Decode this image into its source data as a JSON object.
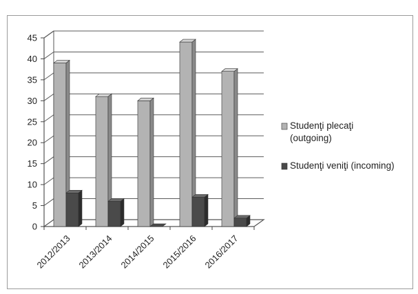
{
  "chart_data": {
    "type": "bar",
    "style": "3d-clustered-column",
    "title": "",
    "xlabel": "",
    "ylabel": "",
    "categories": [
      "2012/2013",
      "2013/2014",
      "2014/2015",
      "2015/2016",
      "2016/2017"
    ],
    "ylim": [
      0,
      45
    ],
    "yticks": [
      0,
      5,
      10,
      15,
      20,
      25,
      30,
      35,
      40,
      45
    ],
    "grid": true,
    "legend_position": "right",
    "series": [
      {
        "name": "Studenţi plecaţi (outgoing)",
        "legend_lines": [
          "Studenţi plecaţi",
          "(outgoing)"
        ],
        "values": [
          39,
          31,
          30,
          44,
          37
        ],
        "color": "#b3b3b3",
        "color_dark": "#8a8a8a",
        "color_light": "#d2d2d2"
      },
      {
        "name": "Studenţi veniţi (incoming)",
        "legend_lines": [
          "Studenţi veniţi (incoming)"
        ],
        "values": [
          8,
          6,
          0,
          7,
          2
        ],
        "color": "#4a4a4a",
        "color_dark": "#2c2c2c",
        "color_light": "#6a6a6a"
      }
    ]
  }
}
